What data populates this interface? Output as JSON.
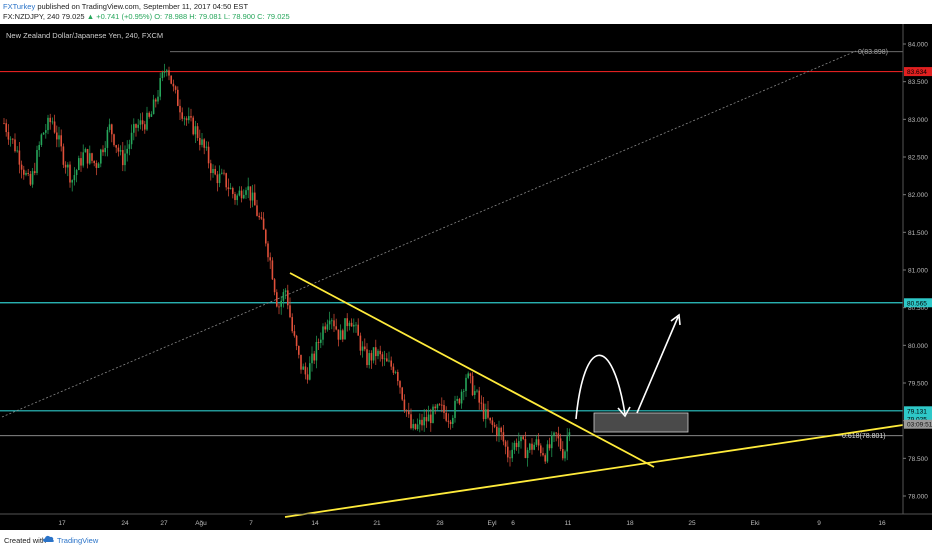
{
  "header": {
    "author": "FXTurkey",
    "published": "published on TradingView.com, September 11, 2017 04:50 EST",
    "symbol": "FX:NZDJPY, 240",
    "price": "79.025",
    "change": "▲ +0.741 (+0.95%)",
    "ohlc": "O: 78.988 H: 79.081 L: 78.900 C: 79.025"
  },
  "chart_data": {
    "type": "candlestick",
    "title": "New Zealand Dollar/Japanese Yen, 240, FXCM",
    "y_ticks": [
      "84.000",
      "83.500",
      "83.000",
      "82.500",
      "82.000",
      "81.500",
      "81.000",
      "80.500",
      "80.000",
      "79.500",
      "79.000",
      "78.500",
      "78.000"
    ],
    "x_ticks": [
      "17",
      "24",
      "27",
      "Ağu",
      "7",
      "14",
      "21",
      "28",
      "Eyl",
      "6",
      "11",
      "18",
      "25",
      "Eki",
      "9",
      "16"
    ],
    "price_labels": [
      {
        "value": 83.634,
        "text": "83.634",
        "color": "#e02020"
      },
      {
        "value": 80.565,
        "text": "80.565",
        "color": "#2ec8c8"
      },
      {
        "value": 79.131,
        "text": "79.131",
        "color": "#2ec8c8"
      },
      {
        "value": 79.025,
        "text": "79.025",
        "color": "#2ec8c8"
      },
      {
        "value": 78.953,
        "text": "03:09:51",
        "color": "#9a9a9a"
      }
    ],
    "horizontal_levels": [
      {
        "value": 83.634,
        "color": "#e02020"
      },
      {
        "value": 80.565,
        "color": "#2ec8c8"
      },
      {
        "value": 79.131,
        "color": "#2ec8c8"
      },
      {
        "value": 78.801,
        "color": "#9a9a9a",
        "label": "0.618(78.801)"
      },
      {
        "value": 83.898,
        "color": "#9a9a9a",
        "label": "0(83.898)"
      }
    ],
    "fib_labels": [
      "0(83.898)",
      "0.618(78.801)"
    ],
    "y_range": [
      77.88,
      84.13
    ],
    "colors": {
      "up": "#26a65b",
      "down": "#e0503a",
      "trendline": "#ffeb3b",
      "annotation": "#ffffff",
      "box": "#555555"
    }
  },
  "footer": {
    "created_with": "Created with",
    "brand": "TradingView"
  }
}
